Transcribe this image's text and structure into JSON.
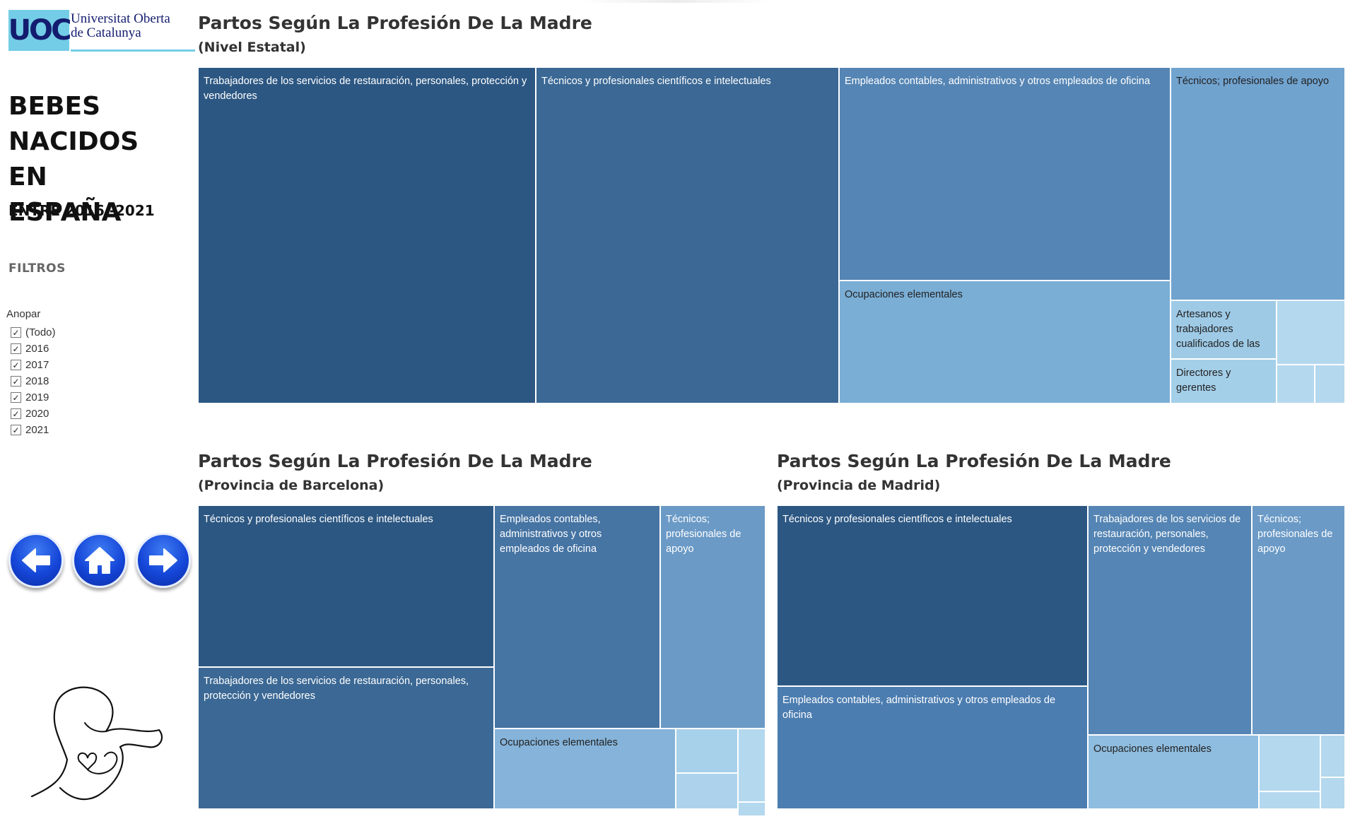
{
  "logo": {
    "mark": "UOC",
    "line1": "Universitat Oberta",
    "line2": "de Catalunya"
  },
  "sidebar": {
    "title_lines": [
      "BEBES",
      "NACIDOS EN",
      "ESPAÑA"
    ],
    "subtitle": "ENTRE 2016 -2021",
    "filters_heading": "FILTROS",
    "filter_label": "Anopar",
    "filter_options": [
      {
        "label": "(Todo)",
        "checked": true
      },
      {
        "label": "2016",
        "checked": true
      },
      {
        "label": "2017",
        "checked": true
      },
      {
        "label": "2018",
        "checked": true
      },
      {
        "label": "2019",
        "checked": true
      },
      {
        "label": "2020",
        "checked": true
      },
      {
        "label": "2021",
        "checked": true
      }
    ],
    "nav_icons": [
      "arrow-left-icon",
      "home-icon",
      "arrow-right-icon"
    ]
  },
  "colors": {
    "dark": "#2c5782",
    "medium_dark": "#3b6894",
    "medium": "#4674a3",
    "medium_light": "#5585b4",
    "light": "#6b9ac6",
    "lighter": "#81afd6",
    "lightest": "#b4d8ee"
  },
  "chart_data": [
    {
      "type": "treemap",
      "title": "Partos Según La Profesión De La Madre",
      "subtitle": "(Nivel Estatal)",
      "tiles": [
        {
          "label": "Trabajadores de los servicios de restauración, personales, protección y vendedores",
          "color": "#2c5782"
        },
        {
          "label": "Técnicos y profesionales científicos e intelectuales",
          "color": "#3b6894"
        },
        {
          "label": "Empleados contables, administrativos y otros empleados de oficina",
          "color": "#5585b4"
        },
        {
          "label": "Técnicos; profesionales de apoyo",
          "color": "#71a3cf"
        },
        {
          "label": "Ocupaciones elementales",
          "color": "#7aaed5"
        },
        {
          "label": "Artesanos y trabajadores cualificados de las",
          "color": "#9ecae6"
        },
        {
          "label": "",
          "color": "#b4d8ee"
        },
        {
          "label": "Directores y gerentes",
          "color": "#a4cfe9"
        },
        {
          "label": "",
          "color": "#b4d8ee"
        },
        {
          "label": "",
          "color": "#b4d8ee"
        }
      ]
    },
    {
      "type": "treemap",
      "title": "Partos Según La Profesión De La Madre",
      "subtitle": "(Provincia de Barcelona)",
      "tiles": [
        {
          "label": "Técnicos y profesionales científicos e intelectuales",
          "color": "#2c5782"
        },
        {
          "label": "Trabajadores de los servicios de restauración, personales, protección y vendedores",
          "color": "#3b6894"
        },
        {
          "label": "Empleados contables, administrativos y otros empleados de oficina",
          "color": "#4674a3"
        },
        {
          "label": "Técnicos; profesionales de apoyo",
          "color": "#6b9ac6"
        },
        {
          "label": "Ocupaciones elementales",
          "color": "#85b3d9"
        },
        {
          "label": "",
          "color": "#a7d0ea"
        },
        {
          "label": "",
          "color": "#acd3eb"
        },
        {
          "label": "",
          "color": "#b4d8ee"
        },
        {
          "label": "",
          "color": "#b4d8ee"
        }
      ]
    },
    {
      "type": "treemap",
      "title": "Partos Según La Profesión De La Madre",
      "subtitle": "(Provincia de Madrid)",
      "tiles": [
        {
          "label": "Técnicos y profesionales científicos e intelectuales",
          "color": "#2c5782"
        },
        {
          "label": "Empleados contables, administrativos y otros empleados de oficina",
          "color": "#4c7db0"
        },
        {
          "label": "Trabajadores de los servicios de restauración, personales, protección y vendedores",
          "color": "#5585b4"
        },
        {
          "label": "Técnicos; profesionales de apoyo",
          "color": "#6b9ac6"
        },
        {
          "label": "Ocupaciones elementales",
          "color": "#8fbde0"
        },
        {
          "label": "",
          "color": "#b4d8ee"
        },
        {
          "label": "",
          "color": "#b4d8ee"
        },
        {
          "label": "",
          "color": "#b4d8ee"
        },
        {
          "label": "",
          "color": "#b4d8ee"
        }
      ]
    }
  ]
}
